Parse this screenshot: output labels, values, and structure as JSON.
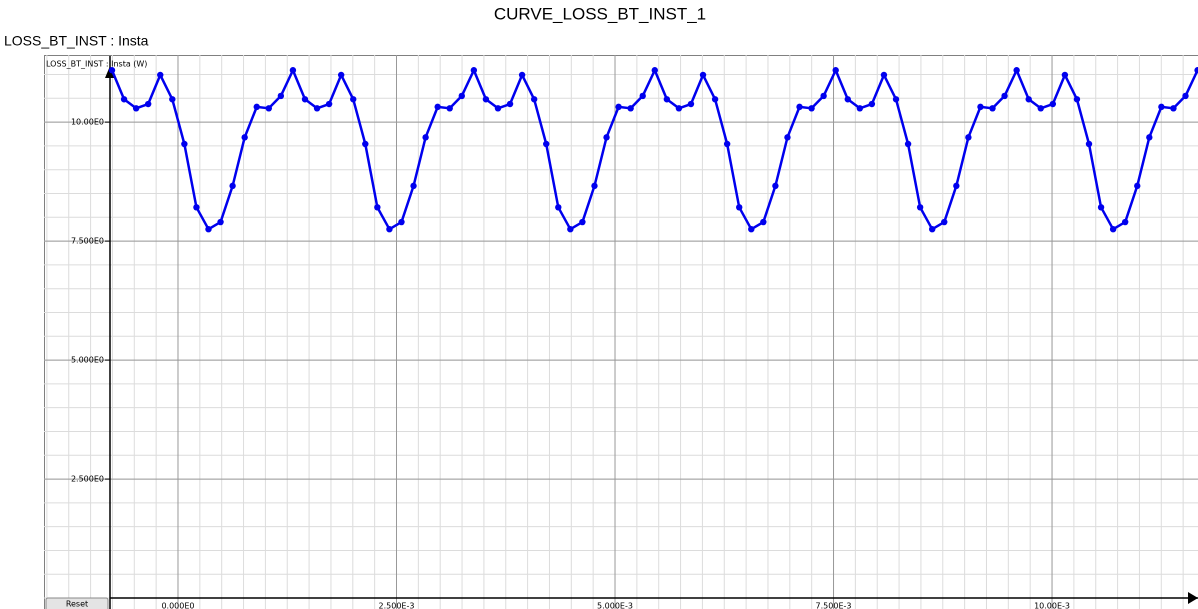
{
  "chart_data": {
    "type": "line",
    "title": "CURVE_LOSS_BT_INST_1",
    "subtitle": "LOSS_BT_INST : Insta",
    "y_label": "LOSS_BT_INST : Insta (W)",
    "xlim": [
      -0.001533,
      0.01167
    ],
    "ylim": [
      -0.23,
      11.41
    ],
    "xticks": [
      {
        "value": 0,
        "label": "0.000E0"
      },
      {
        "value": 0.0025,
        "label": "2.500E-3"
      },
      {
        "value": 0.005,
        "label": "5.000E-3"
      },
      {
        "value": 0.0075,
        "label": "7.500E-3"
      },
      {
        "value": 0.01,
        "label": "10.00E-3"
      }
    ],
    "yticks": [
      {
        "value": 2.5,
        "label": "2.500E0"
      },
      {
        "value": 5,
        "label": "5.000E0"
      },
      {
        "value": 7.5,
        "label": "7.500E0"
      },
      {
        "value": 10,
        "label": "10.00E0"
      }
    ],
    "grid": true,
    "minor_grid_divisions": {
      "x": 10,
      "y": 5
    },
    "x": [
      -0.000755,
      -0.000617,
      -0.000479,
      -0.000341,
      -0.000203,
      -6.5e-05,
      7.3e-05,
      0.000211,
      0.000349,
      0.000487,
      0.000625,
      0.000763,
      0.000901,
      0.001039,
      0.001177,
      0.001315,
      0.001453,
      0.001591,
      0.001729,
      0.001867,
      0.002005,
      0.002143,
      0.002281,
      0.002419,
      0.002557,
      0.002695,
      0.002833,
      0.002971,
      0.003109,
      0.003247,
      0.003385,
      0.003523,
      0.003661,
      0.003799,
      0.003937,
      0.004075,
      0.004213,
      0.004351,
      0.004489,
      0.004627,
      0.004765,
      0.004903,
      0.005041,
      0.005179,
      0.005317,
      0.005455,
      0.005593,
      0.005731,
      0.005869,
      0.006007,
      0.006145,
      0.006283,
      0.006421,
      0.006559,
      0.006697,
      0.006835,
      0.006973,
      0.007111,
      0.007249,
      0.007387,
      0.007525,
      0.007663,
      0.007801,
      0.007939,
      0.008077,
      0.008215,
      0.008353,
      0.008491,
      0.008629,
      0.008767,
      0.008905,
      0.009043,
      0.009181,
      0.009319,
      0.009457,
      0.009595,
      0.009733,
      0.009871,
      0.010009,
      0.010147,
      0.010285,
      0.010423,
      0.010561,
      0.010699,
      0.010837,
      0.010975,
      0.011113,
      0.011251,
      0.011389,
      0.011527,
      0.011665
    ],
    "series": [
      {
        "name": "LOSS_BT_INST : Insta",
        "color": "#0000ee",
        "values": [
          11.09,
          10.48,
          10.29,
          10.38,
          10.99,
          10.48,
          9.54,
          8.21,
          7.75,
          7.9,
          8.66,
          9.68,
          10.32,
          10.29,
          10.55,
          11.09,
          10.48,
          10.29,
          10.38,
          10.99,
          10.48,
          9.54,
          8.21,
          7.75,
          7.9,
          8.66,
          9.68,
          10.32,
          10.29,
          10.55,
          11.09,
          10.48,
          10.29,
          10.38,
          10.99,
          10.48,
          9.54,
          8.21,
          7.75,
          7.9,
          8.66,
          9.68,
          10.32,
          10.29,
          10.55,
          11.09,
          10.48,
          10.29,
          10.38,
          10.99,
          10.48,
          9.54,
          8.21,
          7.75,
          7.9,
          8.66,
          9.68,
          10.32,
          10.29,
          10.55,
          11.09,
          10.48,
          10.29,
          10.38,
          10.99,
          10.48,
          9.54,
          8.21,
          7.75,
          7.9,
          8.66,
          9.68,
          10.32,
          10.29,
          10.55,
          11.09,
          10.48,
          10.29,
          10.38,
          10.99,
          10.48,
          9.54,
          8.21,
          7.75,
          7.9,
          8.66,
          9.68,
          10.32,
          10.29,
          10.55,
          11.09
        ]
      }
    ]
  },
  "controls": {
    "reset": "Reset"
  }
}
